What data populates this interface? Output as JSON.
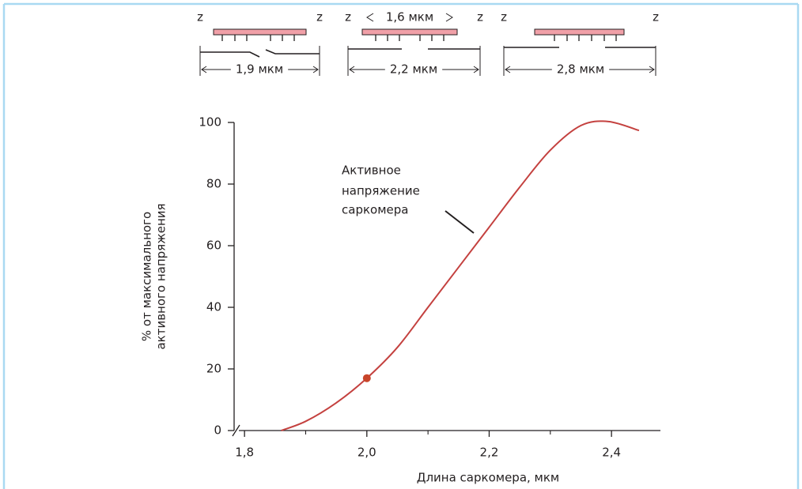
{
  "sarcomeres": {
    "z": "z",
    "myosin_length": "1,6 мкм",
    "lengths": [
      "1,9 мкм",
      "2,2 мкм",
      "2,8 мкм"
    ]
  },
  "chart_data": {
    "type": "line",
    "x_label": "Длина саркомера, мкм",
    "y_label": [
      "% от максимального",
      "активного напряжения"
    ],
    "annotation": [
      "Активное",
      "напряжение",
      "саркомера"
    ],
    "xlim": [
      1.783,
      2.48
    ],
    "ylim": [
      0,
      100
    ],
    "xticks": [
      {
        "value": 1.8,
        "label": "1,8"
      },
      {
        "value": 2.0,
        "label": "2,0"
      },
      {
        "value": 2.2,
        "label": "2,2"
      },
      {
        "value": 2.4,
        "label": "2,4"
      }
    ],
    "minor_xticks": [
      1.9,
      2.1,
      2.3
    ],
    "yticks": [
      0,
      20,
      40,
      60,
      80,
      100
    ],
    "series": [
      {
        "color": "#c4413f",
        "x": [
          1.86,
          1.9,
          1.95,
          2.0,
          2.05,
          2.1,
          2.15,
          2.2,
          2.25,
          2.3,
          2.35,
          2.395,
          2.445
        ],
        "values": [
          0,
          3,
          9,
          17,
          27,
          40,
          53,
          66,
          79,
          91,
          99,
          100.3,
          97.4
        ]
      }
    ],
    "point": {
      "x": 2.0,
      "y": 17,
      "color": "#c8452a"
    }
  }
}
